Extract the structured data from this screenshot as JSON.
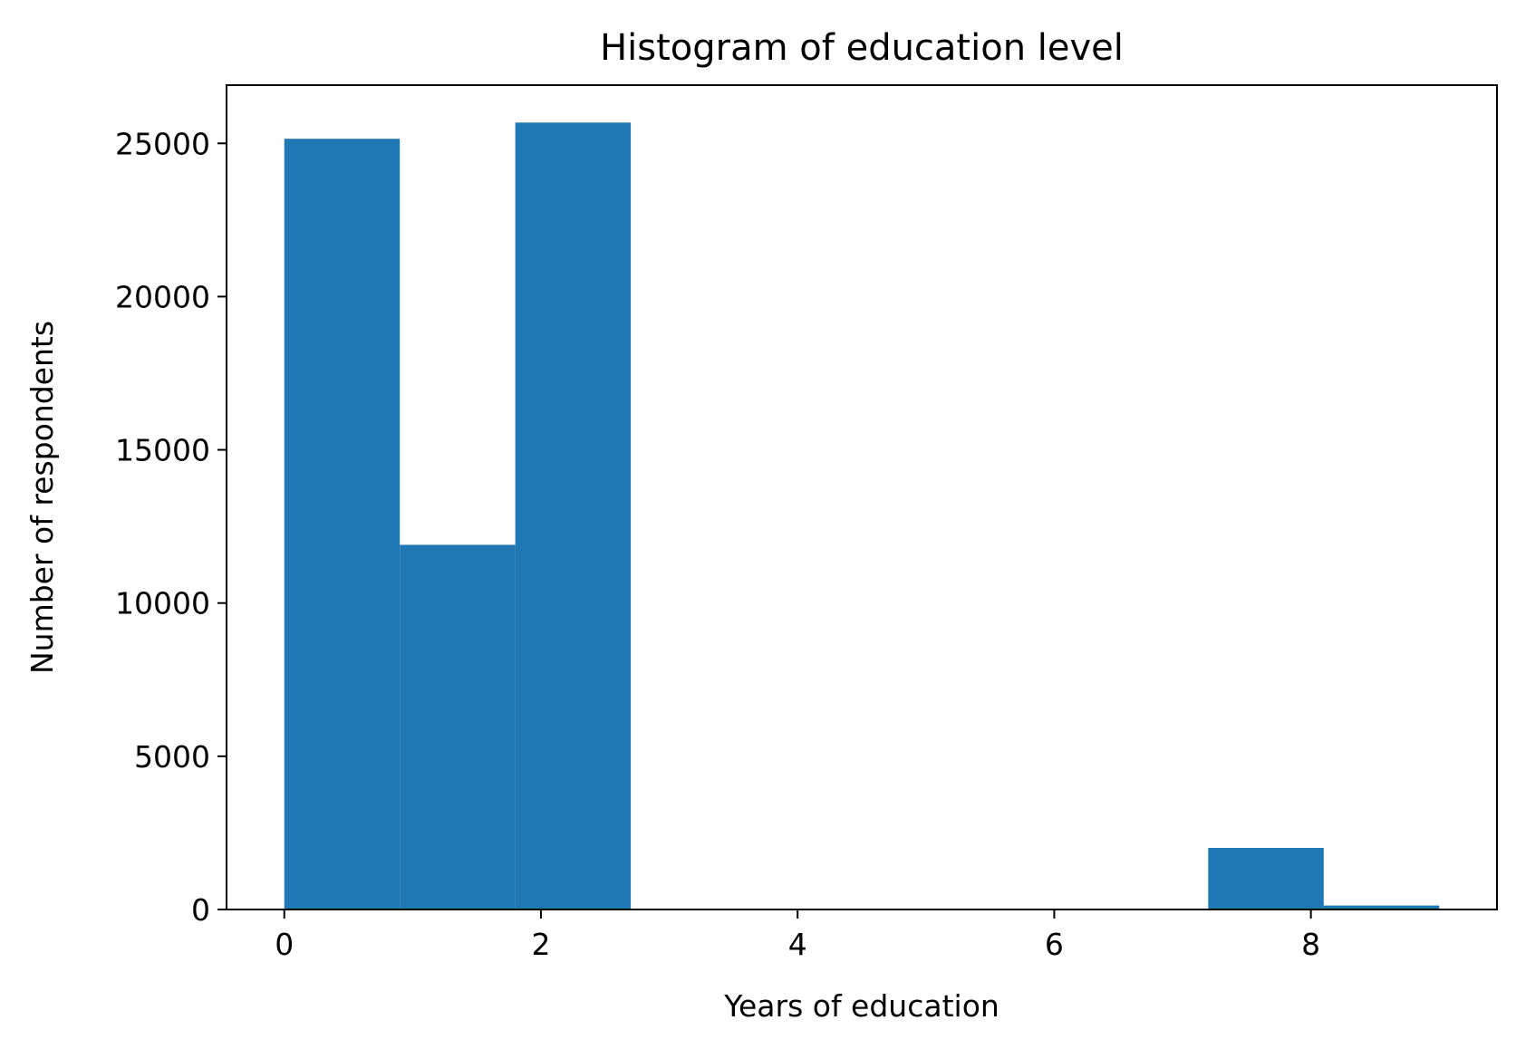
{
  "chart_data": {
    "type": "bar",
    "title": "Histogram of education level",
    "xlabel": "Years of education",
    "ylabel": "Number of respondents",
    "xlim": [
      -0.45,
      9.45
    ],
    "ylim": [
      0,
      26900
    ],
    "xticks": [
      0,
      2,
      4,
      6,
      8
    ],
    "xtick_labels": [
      "0",
      "2",
      "4",
      "6",
      "8"
    ],
    "yticks": [
      0,
      5000,
      10000,
      15000,
      20000,
      25000
    ],
    "ytick_labels": [
      "0",
      "5000",
      "10000",
      "15000",
      "20000",
      "25000"
    ],
    "bins": [
      {
        "x0": 0.0,
        "x1": 0.9,
        "value": 25150
      },
      {
        "x0": 0.9,
        "x1": 1.8,
        "value": 11900
      },
      {
        "x0": 1.8,
        "x1": 2.7,
        "value": 25680
      },
      {
        "x0": 2.7,
        "x1": 3.6,
        "value": 0
      },
      {
        "x0": 3.6,
        "x1": 4.5,
        "value": 0
      },
      {
        "x0": 4.5,
        "x1": 5.4,
        "value": 0
      },
      {
        "x0": 5.4,
        "x1": 6.3,
        "value": 0
      },
      {
        "x0": 6.3,
        "x1": 7.2,
        "value": 0
      },
      {
        "x0": 7.2,
        "x1": 8.1,
        "value": 2010
      },
      {
        "x0": 8.1,
        "x1": 9.0,
        "value": 130
      }
    ],
    "bar_color": "#1f77b4",
    "grid": false,
    "legend": "none"
  }
}
